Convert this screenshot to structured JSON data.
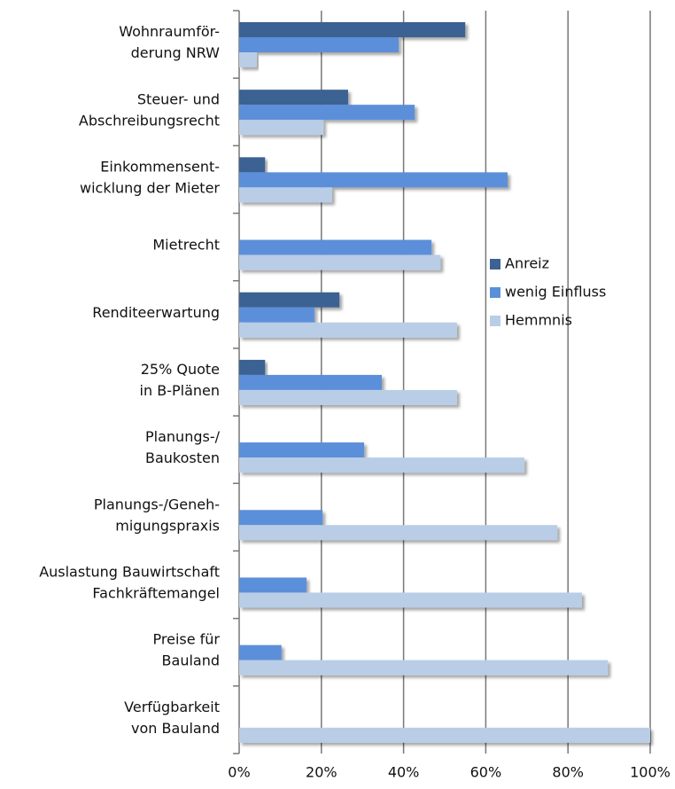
{
  "chart_data": {
    "type": "hbar",
    "categories": [
      [
        "Wohnraumför-",
        "derung NRW"
      ],
      [
        "Steuer- und",
        "Abschreibungsrecht"
      ],
      [
        "Einkommensent-",
        "wicklung der Mieter"
      ],
      [
        "Mietrecht"
      ],
      [
        "Renditeerwartung"
      ],
      [
        "25% Quote",
        "in B-Plänen"
      ],
      [
        "Planungs-/",
        "Baukosten"
      ],
      [
        "Planungs-/Geneh-",
        "migungspraxis"
      ],
      [
        "Auslastung Bauwirtschaft",
        "Fachkräftemangel"
      ],
      [
        "Preise für",
        "Bauland"
      ],
      [
        "Verfügbarkeit",
        "von Bauland"
      ]
    ],
    "series": [
      {
        "name": "Anreiz",
        "color": "#3b6292",
        "values": [
          55,
          26.5,
          6.3,
          0,
          24.4,
          6.3,
          0,
          0,
          0,
          0,
          0
        ]
      },
      {
        "name": "wenig Einfluss",
        "color": "#5b8fd9",
        "values": [
          38.8,
          42.7,
          65.3,
          46.8,
          18.3,
          34.7,
          30.4,
          20.3,
          16.4,
          10.3,
          0
        ]
      },
      {
        "name": "Hemmnis",
        "color": "#b9cde6",
        "values": [
          4.3,
          20.5,
          22.6,
          49,
          53,
          53,
          69.4,
          77.4,
          83.4,
          89.7,
          100
        ]
      }
    ],
    "xlim": [
      0,
      100
    ],
    "xticks": [
      {
        "value": 0,
        "label": "0%"
      },
      {
        "value": 20,
        "label": "20%"
      },
      {
        "value": 40,
        "label": "40%"
      },
      {
        "value": 60,
        "label": "60%"
      },
      {
        "value": 80,
        "label": "80%"
      },
      {
        "value": 100,
        "label": "100%"
      }
    ],
    "grid": true
  }
}
